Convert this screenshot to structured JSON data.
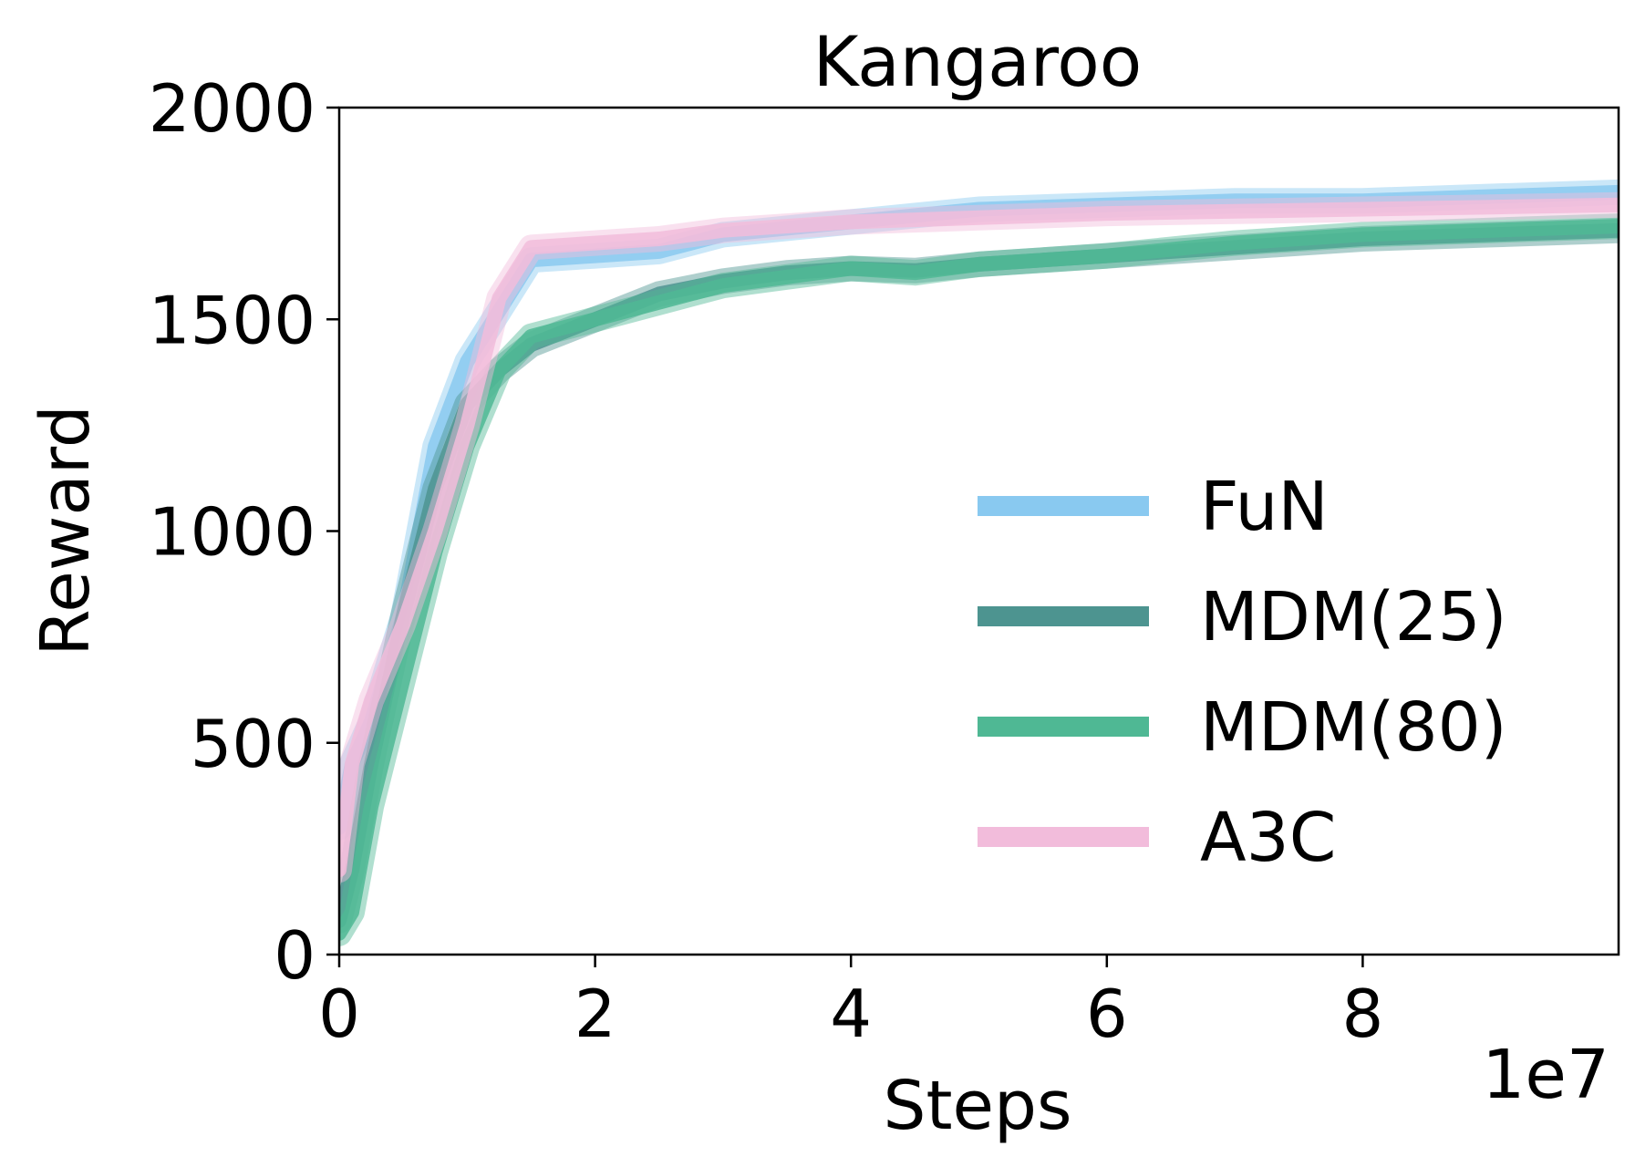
{
  "chart_data": {
    "type": "line",
    "title": "Kangaroo",
    "xlabel": "Steps",
    "ylabel": "Reward",
    "x_offset_label": "1e7",
    "xlim": [
      0,
      10
    ],
    "ylim": [
      0,
      2000
    ],
    "x_ticks": [
      0,
      2,
      4,
      6,
      8
    ],
    "x_tick_labels": [
      "0",
      "2",
      "4",
      "6",
      "8"
    ],
    "y_ticks": [
      0,
      500,
      1000,
      1500,
      2000
    ],
    "y_tick_labels": [
      "0",
      "500",
      "1000",
      "1500",
      "2000"
    ],
    "legend_position": "lower-right",
    "grid": false,
    "series": [
      {
        "name": "FuN",
        "color": "#89C9F0",
        "x": [
          0,
          0.1,
          0.25,
          0.5,
          0.75,
          1.0,
          1.25,
          1.5,
          2.0,
          2.5,
          3.0,
          4.0,
          5.0,
          6.0,
          7.0,
          8.0,
          9.0,
          10.0
        ],
        "y": [
          300,
          450,
          550,
          800,
          1200,
          1400,
          1520,
          1640,
          1650,
          1660,
          1700,
          1730,
          1760,
          1770,
          1780,
          1780,
          1790,
          1800
        ]
      },
      {
        "name": "MDM(25)",
        "color": "#4D9490",
        "x": [
          0,
          0.1,
          0.25,
          0.5,
          0.75,
          1.0,
          1.25,
          1.5,
          2.0,
          2.5,
          3.0,
          3.5,
          4.0,
          4.5,
          5.0,
          6.0,
          7.0,
          8.0,
          9.0,
          10.0
        ],
        "y": [
          80,
          200,
          450,
          800,
          1100,
          1300,
          1380,
          1440,
          1500,
          1560,
          1590,
          1610,
          1620,
          1615,
          1630,
          1650,
          1670,
          1690,
          1700,
          1710
        ]
      },
      {
        "name": "MDM(80)",
        "color": "#4FB894",
        "x": [
          0,
          0.1,
          0.25,
          0.5,
          0.75,
          1.0,
          1.25,
          1.5,
          2.0,
          2.5,
          3.0,
          3.5,
          4.0,
          4.5,
          5.0,
          6.0,
          7.0,
          8.0,
          9.0,
          10.0
        ],
        "y": [
          50,
          100,
          350,
          650,
          950,
          1200,
          1380,
          1460,
          1500,
          1540,
          1580,
          1600,
          1620,
          1610,
          1630,
          1650,
          1680,
          1700,
          1710,
          1720
        ]
      },
      {
        "name": "A3C",
        "color": "#F2BCDB",
        "x": [
          0,
          0.1,
          0.25,
          0.5,
          0.75,
          1.0,
          1.25,
          1.5,
          2.0,
          2.5,
          3.0,
          4.0,
          5.0,
          6.0,
          7.0,
          8.0,
          9.0,
          10.0
        ],
        "y": [
          200,
          450,
          600,
          780,
          1000,
          1250,
          1550,
          1670,
          1680,
          1690,
          1710,
          1730,
          1740,
          1750,
          1755,
          1760,
          1765,
          1770
        ]
      }
    ]
  }
}
